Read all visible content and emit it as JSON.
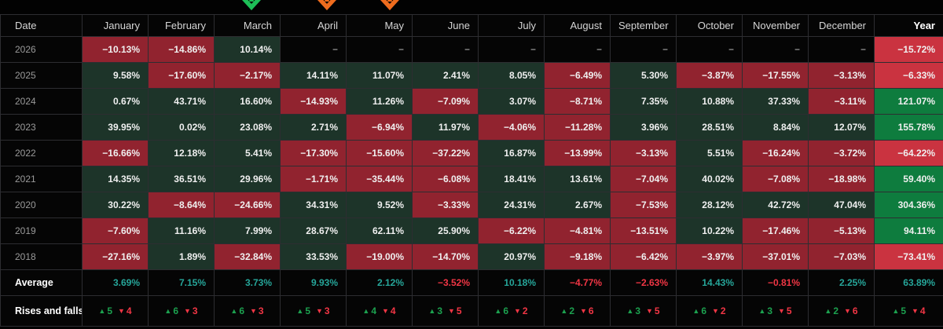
{
  "columns": [
    "Date",
    "January",
    "February",
    "March",
    "April",
    "May",
    "June",
    "July",
    "August",
    "September",
    "October",
    "November",
    "December",
    "Year"
  ],
  "arrows": [
    {
      "column": "March",
      "direction": "down",
      "color": "#1dbf57"
    },
    {
      "column": "April",
      "direction": "down",
      "color": "#ef6c1e"
    },
    {
      "column": "May",
      "direction": "down",
      "color": "#ef6c1e"
    }
  ],
  "colors": {
    "cell_positive_bg": "#1d3429",
    "cell_negative_bg": "#91232f",
    "year_positive_bg": "#0e7c3e",
    "year_negative_bg": "#ca3340",
    "average_positive_text": "#26a69a",
    "average_negative_text": "#f23645",
    "rises_text": "#1ca14f",
    "falls_text": "#f23645"
  },
  "table": {
    "rows": [
      {
        "label": "2026",
        "monthly": [
          {
            "text": "−10.13%",
            "tone": "neg"
          },
          {
            "text": "−14.86%",
            "tone": "neg"
          },
          {
            "text": "10.14%",
            "tone": "pos"
          },
          {
            "text": "−",
            "tone": "empty"
          },
          {
            "text": "−",
            "tone": "empty"
          },
          {
            "text": "−",
            "tone": "empty"
          },
          {
            "text": "−",
            "tone": "empty"
          },
          {
            "text": "−",
            "tone": "empty"
          },
          {
            "text": "−",
            "tone": "empty"
          },
          {
            "text": "−",
            "tone": "empty"
          },
          {
            "text": "−",
            "tone": "empty"
          },
          {
            "text": "−",
            "tone": "empty"
          }
        ],
        "year": {
          "text": "−15.72%",
          "tone": "neg"
        }
      },
      {
        "label": "2025",
        "monthly": [
          {
            "text": "9.58%",
            "tone": "pos"
          },
          {
            "text": "−17.60%",
            "tone": "neg"
          },
          {
            "text": "−2.17%",
            "tone": "neg"
          },
          {
            "text": "14.11%",
            "tone": "pos"
          },
          {
            "text": "11.07%",
            "tone": "pos"
          },
          {
            "text": "2.41%",
            "tone": "pos"
          },
          {
            "text": "8.05%",
            "tone": "pos"
          },
          {
            "text": "−6.49%",
            "tone": "neg"
          },
          {
            "text": "5.30%",
            "tone": "pos"
          },
          {
            "text": "−3.87%",
            "tone": "neg"
          },
          {
            "text": "−17.55%",
            "tone": "neg"
          },
          {
            "text": "−3.13%",
            "tone": "neg"
          }
        ],
        "year": {
          "text": "−6.33%",
          "tone": "neg"
        }
      },
      {
        "label": "2024",
        "monthly": [
          {
            "text": "0.67%",
            "tone": "pos"
          },
          {
            "text": "43.71%",
            "tone": "pos"
          },
          {
            "text": "16.60%",
            "tone": "pos"
          },
          {
            "text": "−14.93%",
            "tone": "neg"
          },
          {
            "text": "11.26%",
            "tone": "pos"
          },
          {
            "text": "−7.09%",
            "tone": "neg"
          },
          {
            "text": "3.07%",
            "tone": "pos"
          },
          {
            "text": "−8.71%",
            "tone": "neg"
          },
          {
            "text": "7.35%",
            "tone": "pos"
          },
          {
            "text": "10.88%",
            "tone": "pos"
          },
          {
            "text": "37.33%",
            "tone": "pos"
          },
          {
            "text": "−3.11%",
            "tone": "neg"
          }
        ],
        "year": {
          "text": "121.07%",
          "tone": "pos"
        }
      },
      {
        "label": "2023",
        "monthly": [
          {
            "text": "39.95%",
            "tone": "pos"
          },
          {
            "text": "0.02%",
            "tone": "pos"
          },
          {
            "text": "23.08%",
            "tone": "pos"
          },
          {
            "text": "2.71%",
            "tone": "pos"
          },
          {
            "text": "−6.94%",
            "tone": "neg"
          },
          {
            "text": "11.97%",
            "tone": "pos"
          },
          {
            "text": "−4.06%",
            "tone": "neg"
          },
          {
            "text": "−11.28%",
            "tone": "neg"
          },
          {
            "text": "3.96%",
            "tone": "pos"
          },
          {
            "text": "28.51%",
            "tone": "pos"
          },
          {
            "text": "8.84%",
            "tone": "pos"
          },
          {
            "text": "12.07%",
            "tone": "pos"
          }
        ],
        "year": {
          "text": "155.78%",
          "tone": "pos"
        }
      },
      {
        "label": "2022",
        "monthly": [
          {
            "text": "−16.66%",
            "tone": "neg"
          },
          {
            "text": "12.18%",
            "tone": "pos"
          },
          {
            "text": "5.41%",
            "tone": "pos"
          },
          {
            "text": "−17.30%",
            "tone": "neg"
          },
          {
            "text": "−15.60%",
            "tone": "neg"
          },
          {
            "text": "−37.22%",
            "tone": "neg"
          },
          {
            "text": "16.87%",
            "tone": "pos"
          },
          {
            "text": "−13.99%",
            "tone": "neg"
          },
          {
            "text": "−3.13%",
            "tone": "neg"
          },
          {
            "text": "5.51%",
            "tone": "pos"
          },
          {
            "text": "−16.24%",
            "tone": "neg"
          },
          {
            "text": "−3.72%",
            "tone": "neg"
          }
        ],
        "year": {
          "text": "−64.22%",
          "tone": "neg"
        }
      },
      {
        "label": "2021",
        "monthly": [
          {
            "text": "14.35%",
            "tone": "pos"
          },
          {
            "text": "36.51%",
            "tone": "pos"
          },
          {
            "text": "29.96%",
            "tone": "pos"
          },
          {
            "text": "−1.71%",
            "tone": "neg"
          },
          {
            "text": "−35.44%",
            "tone": "neg"
          },
          {
            "text": "−6.08%",
            "tone": "neg"
          },
          {
            "text": "18.41%",
            "tone": "pos"
          },
          {
            "text": "13.61%",
            "tone": "pos"
          },
          {
            "text": "−7.04%",
            "tone": "neg"
          },
          {
            "text": "40.02%",
            "tone": "pos"
          },
          {
            "text": "−7.08%",
            "tone": "neg"
          },
          {
            "text": "−18.98%",
            "tone": "neg"
          }
        ],
        "year": {
          "text": "59.40%",
          "tone": "pos"
        }
      },
      {
        "label": "2020",
        "monthly": [
          {
            "text": "30.22%",
            "tone": "pos"
          },
          {
            "text": "−8.64%",
            "tone": "neg"
          },
          {
            "text": "−24.66%",
            "tone": "neg"
          },
          {
            "text": "34.31%",
            "tone": "pos"
          },
          {
            "text": "9.52%",
            "tone": "pos"
          },
          {
            "text": "−3.33%",
            "tone": "neg"
          },
          {
            "text": "24.31%",
            "tone": "pos"
          },
          {
            "text": "2.67%",
            "tone": "pos"
          },
          {
            "text": "−7.53%",
            "tone": "neg"
          },
          {
            "text": "28.12%",
            "tone": "pos"
          },
          {
            "text": "42.72%",
            "tone": "pos"
          },
          {
            "text": "47.04%",
            "tone": "pos"
          }
        ],
        "year": {
          "text": "304.36%",
          "tone": "pos"
        }
      },
      {
        "label": "2019",
        "monthly": [
          {
            "text": "−7.60%",
            "tone": "neg"
          },
          {
            "text": "11.16%",
            "tone": "pos"
          },
          {
            "text": "7.99%",
            "tone": "pos"
          },
          {
            "text": "28.67%",
            "tone": "pos"
          },
          {
            "text": "62.11%",
            "tone": "pos"
          },
          {
            "text": "25.90%",
            "tone": "pos"
          },
          {
            "text": "−6.22%",
            "tone": "neg"
          },
          {
            "text": "−4.81%",
            "tone": "neg"
          },
          {
            "text": "−13.51%",
            "tone": "neg"
          },
          {
            "text": "10.22%",
            "tone": "pos"
          },
          {
            "text": "−17.46%",
            "tone": "neg"
          },
          {
            "text": "−5.13%",
            "tone": "neg"
          }
        ],
        "year": {
          "text": "94.11%",
          "tone": "pos"
        }
      },
      {
        "label": "2018",
        "monthly": [
          {
            "text": "−27.16%",
            "tone": "neg"
          },
          {
            "text": "1.89%",
            "tone": "pos"
          },
          {
            "text": "−32.84%",
            "tone": "neg"
          },
          {
            "text": "33.53%",
            "tone": "pos"
          },
          {
            "text": "−19.00%",
            "tone": "neg"
          },
          {
            "text": "−14.70%",
            "tone": "neg"
          },
          {
            "text": "20.97%",
            "tone": "pos"
          },
          {
            "text": "−9.18%",
            "tone": "neg"
          },
          {
            "text": "−6.42%",
            "tone": "neg"
          },
          {
            "text": "−3.97%",
            "tone": "neg"
          },
          {
            "text": "−37.01%",
            "tone": "neg"
          },
          {
            "text": "−7.03%",
            "tone": "neg"
          }
        ],
        "year": {
          "text": "−73.41%",
          "tone": "neg"
        }
      }
    ],
    "average": {
      "label": "Average",
      "values": [
        {
          "text": "3.69%",
          "tone": "pos"
        },
        {
          "text": "7.15%",
          "tone": "pos"
        },
        {
          "text": "3.73%",
          "tone": "pos"
        },
        {
          "text": "9.93%",
          "tone": "pos"
        },
        {
          "text": "2.12%",
          "tone": "pos"
        },
        {
          "text": "−3.52%",
          "tone": "neg"
        },
        {
          "text": "10.18%",
          "tone": "pos"
        },
        {
          "text": "−4.77%",
          "tone": "neg"
        },
        {
          "text": "−2.63%",
          "tone": "neg"
        },
        {
          "text": "14.43%",
          "tone": "pos"
        },
        {
          "text": "−0.81%",
          "tone": "neg"
        },
        {
          "text": "2.25%",
          "tone": "pos"
        }
      ],
      "year": {
        "text": "63.89%",
        "tone": "pos"
      }
    },
    "rises_falls": {
      "label": "Rises and falls",
      "values": [
        {
          "up": "5",
          "down": "4"
        },
        {
          "up": "6",
          "down": "3"
        },
        {
          "up": "6",
          "down": "3"
        },
        {
          "up": "5",
          "down": "3"
        },
        {
          "up": "4",
          "down": "4"
        },
        {
          "up": "3",
          "down": "5"
        },
        {
          "up": "6",
          "down": "2"
        },
        {
          "up": "2",
          "down": "6"
        },
        {
          "up": "3",
          "down": "5"
        },
        {
          "up": "6",
          "down": "2"
        },
        {
          "up": "3",
          "down": "5"
        },
        {
          "up": "2",
          "down": "6"
        },
        {
          "up": "5",
          "down": "4"
        }
      ]
    }
  },
  "chart_data": {
    "type": "heatmap",
    "title": "",
    "x_categories": [
      "January",
      "February",
      "March",
      "April",
      "May",
      "June",
      "July",
      "August",
      "September",
      "October",
      "November",
      "December"
    ],
    "y_categories": [
      "2026",
      "2025",
      "2024",
      "2023",
      "2022",
      "2021",
      "2020",
      "2019",
      "2018"
    ],
    "values_pct": [
      [
        -10.13,
        -14.86,
        10.14,
        null,
        null,
        null,
        null,
        null,
        null,
        null,
        null,
        null
      ],
      [
        9.58,
        -17.6,
        -2.17,
        14.11,
        11.07,
        2.41,
        8.05,
        -6.49,
        5.3,
        -3.87,
        -17.55,
        -3.13
      ],
      [
        0.67,
        43.71,
        16.6,
        -14.93,
        11.26,
        -7.09,
        3.07,
        -8.71,
        7.35,
        10.88,
        37.33,
        -3.11
      ],
      [
        39.95,
        0.02,
        23.08,
        2.71,
        -6.94,
        11.97,
        -4.06,
        -11.28,
        3.96,
        28.51,
        8.84,
        12.07
      ],
      [
        -16.66,
        12.18,
        5.41,
        -17.3,
        -15.6,
        -37.22,
        16.87,
        -13.99,
        -3.13,
        5.51,
        -16.24,
        -3.72
      ],
      [
        14.35,
        36.51,
        29.96,
        -1.71,
        -35.44,
        -6.08,
        18.41,
        13.61,
        -7.04,
        40.02,
        -7.08,
        -18.98
      ],
      [
        30.22,
        -8.64,
        -24.66,
        34.31,
        9.52,
        -3.33,
        24.31,
        2.67,
        -7.53,
        28.12,
        42.72,
        47.04
      ],
      [
        -7.6,
        11.16,
        7.99,
        28.67,
        62.11,
        25.9,
        -6.22,
        -4.81,
        -13.51,
        10.22,
        -17.46,
        -5.13
      ],
      [
        -27.16,
        1.89,
        -32.84,
        33.53,
        -19.0,
        -14.7,
        20.97,
        -9.18,
        -6.42,
        -3.97,
        -37.01,
        -7.03
      ]
    ],
    "year_totals_pct": [
      -15.72,
      -6.33,
      121.07,
      155.78,
      -64.22,
      59.4,
      304.36,
      94.11,
      -73.41
    ],
    "average_pct": [
      3.69,
      7.15,
      3.73,
      9.93,
      2.12,
      -3.52,
      10.18,
      -4.77,
      -2.63,
      14.43,
      -0.81,
      2.25
    ],
    "average_year_pct": 63.89,
    "rises_falls": [
      {
        "col": "January",
        "rises": 5,
        "falls": 4
      },
      {
        "col": "February",
        "rises": 6,
        "falls": 3
      },
      {
        "col": "March",
        "rises": 6,
        "falls": 3
      },
      {
        "col": "April",
        "rises": 5,
        "falls": 3
      },
      {
        "col": "May",
        "rises": 4,
        "falls": 4
      },
      {
        "col": "June",
        "rises": 3,
        "falls": 5
      },
      {
        "col": "July",
        "rises": 6,
        "falls": 2
      },
      {
        "col": "August",
        "rises": 2,
        "falls": 6
      },
      {
        "col": "September",
        "rises": 3,
        "falls": 5
      },
      {
        "col": "October",
        "rises": 6,
        "falls": 2
      },
      {
        "col": "November",
        "rises": 3,
        "falls": 5
      },
      {
        "col": "December",
        "rises": 2,
        "falls": 6
      },
      {
        "col": "Year",
        "rises": 5,
        "falls": 4
      }
    ]
  }
}
